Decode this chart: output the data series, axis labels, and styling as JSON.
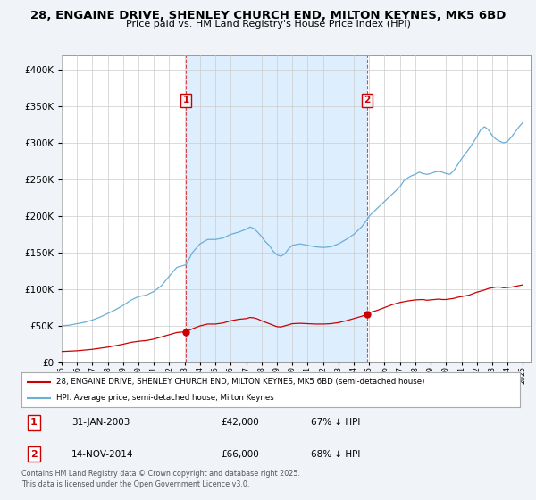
{
  "title_line1": "28, ENGAINE DRIVE, SHENLEY CHURCH END, MILTON KEYNES, MK5 6BD",
  "title_line2": "Price paid vs. HM Land Registry's House Price Index (HPI)",
  "bg_color": "#f0f4f8",
  "plot_bg_color": "#ffffff",
  "shade_color": "#ddeeff",
  "legend_label_red": "28, ENGAINE DRIVE, SHENLEY CHURCH END, MILTON KEYNES, MK5 6BD (semi-detached house)",
  "legend_label_blue": "HPI: Average price, semi-detached house, Milton Keynes",
  "footnote": "Contains HM Land Registry data © Crown copyright and database right 2025.\nThis data is licensed under the Open Government Licence v3.0.",
  "annotation1": {
    "num": "1",
    "date": "31-JAN-2003",
    "price": "£42,000",
    "hpi": "67% ↓ HPI",
    "x_year": 2003.08
  },
  "annotation2": {
    "num": "2",
    "date": "14-NOV-2014",
    "price": "£66,000",
    "hpi": "68% ↓ HPI",
    "x_year": 2014.87
  },
  "sale1_year": 2003.08,
  "sale1_value": 42000,
  "sale2_year": 2014.87,
  "sale2_value": 66000,
  "ylim": [
    0,
    420000
  ],
  "xlim": [
    1995,
    2025.5
  ],
  "hpi_color": "#6baed6",
  "red_color": "#cc0000",
  "grid_color": "#cccccc",
  "vline_color": "#cc0000"
}
